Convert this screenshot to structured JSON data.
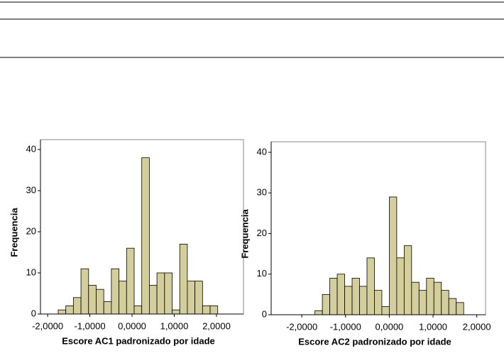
{
  "chart_data": [
    {
      "type": "histogram",
      "xlabel": "Escore AC1 padronizado por idade",
      "ylabel": "Frequencia",
      "bins": [
        -1.75,
        -1.57,
        -1.39,
        -1.21,
        -1.03,
        -0.85,
        -0.67,
        -0.49,
        -0.31,
        -0.13,
        0.05,
        0.23,
        0.41,
        0.59,
        0.77,
        0.95,
        1.13,
        1.31,
        1.49,
        1.67,
        1.85,
        2.03
      ],
      "counts": [
        1,
        2,
        4,
        11,
        7,
        6,
        3,
        11,
        8,
        16,
        2,
        38,
        7,
        10,
        10,
        1,
        17,
        8,
        8,
        2,
        2
      ],
      "color": "#d3ce9c",
      "xlim": [
        -2.17,
        2.64
      ],
      "ylim": [
        0,
        42.4
      ],
      "xticks": [
        {
          "value": -2,
          "label": "-2,0000"
        },
        {
          "value": -1,
          "label": "-1,0000"
        },
        {
          "value": 0,
          "label": "0,0000"
        },
        {
          "value": 1,
          "label": "1,0000"
        },
        {
          "value": 2,
          "label": "2,0000"
        }
      ],
      "yticks": [
        0,
        10,
        20,
        30,
        40
      ]
    },
    {
      "type": "histogram",
      "xlabel": "Escore AC2 padronizado por idade",
      "ylabel": "Frequencia",
      "bins": [
        -1.7,
        -1.53,
        -1.36,
        -1.19,
        -1.02,
        -0.85,
        -0.68,
        -0.51,
        -0.34,
        -0.17,
        0,
        0.17,
        0.34,
        0.51,
        0.68,
        0.85,
        1.02,
        1.19,
        1.36,
        1.53,
        1.7
      ],
      "counts": [
        1,
        5,
        9,
        10,
        7,
        9,
        7,
        14,
        6,
        2,
        29,
        14,
        17,
        8,
        6,
        9,
        8,
        6,
        4,
        3
      ],
      "color": "#d3ce9c",
      "xlim": [
        -2.7,
        2.2
      ],
      "ylim": [
        0,
        42.6
      ],
      "xticks": [
        {
          "value": -2,
          "label": "-2,0000"
        },
        {
          "value": -1,
          "label": "-1,0000"
        },
        {
          "value": 0,
          "label": "0,0000"
        },
        {
          "value": 1,
          "label": "1,0000"
        },
        {
          "value": 2,
          "label": "2,0000"
        }
      ],
      "yticks": [
        0,
        10,
        20,
        30,
        40
      ]
    }
  ]
}
